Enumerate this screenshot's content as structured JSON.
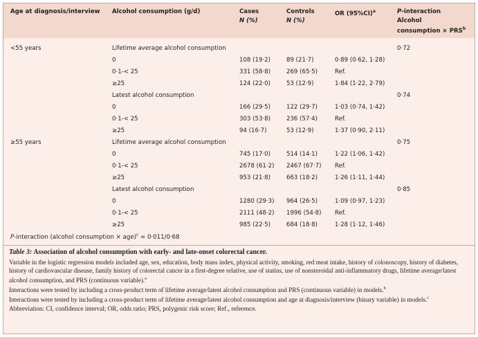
{
  "table": {
    "columns": [
      {
        "lines": [
          {
            "text": "Age at diagnosis/interview"
          }
        ]
      },
      {
        "lines": [
          {
            "text": "Alcohol consumption (g/d)"
          }
        ]
      },
      {
        "lines": [
          {
            "text": "Cases"
          },
          {
            "italic": "N (%)"
          }
        ]
      },
      {
        "lines": [
          {
            "text": "Controls"
          },
          {
            "italic": "N (%)"
          }
        ]
      },
      {
        "lines": [
          {
            "text": "OR (95%CI)",
            "sup": "a"
          }
        ]
      },
      {
        "lines": [
          {
            "italic": "P",
            "text": "-interaction"
          },
          {
            "text": "Alcohol"
          },
          {
            "text": "consumption × PRS",
            "sup": "b"
          }
        ]
      }
    ],
    "rows": [
      {
        "age": "<55 years",
        "alcohol": "Lifetime average alcohol consumption",
        "p": "0·72"
      },
      {
        "alcohol": "0",
        "cases": "108 (19·2)",
        "controls": "89 (21·7)",
        "or": "0·89 (0·62, 1·28)"
      },
      {
        "alcohol": "0·1-< 25",
        "cases": "331 (58·8)",
        "controls": "269 (65·5)",
        "or": "Ref."
      },
      {
        "alcohol": "≥25",
        "cases": "124 (22·0)",
        "controls": "53 (12·9)",
        "or": "1·84 (1·22, 2·79)"
      },
      {
        "alcohol": "Latest alcohol consumption",
        "p": "0·74"
      },
      {
        "alcohol": "0",
        "cases": "166 (29·5)",
        "controls": "122 (29·7)",
        "or": "1·03 (0·74, 1·42)"
      },
      {
        "alcohol": "0·1-< 25",
        "cases": "303 (53·8)",
        "controls": "236 (57·4)",
        "or": "Ref."
      },
      {
        "alcohol": "≥25",
        "cases": "94 (16·7)",
        "controls": "53 (12·9)",
        "or": "1·37 (0·90, 2·11)"
      },
      {
        "age": "≥55 years",
        "alcohol": "Lifetime average alcohol consumption",
        "p": "0·75"
      },
      {
        "alcohol": "0",
        "cases": "745 (17·0)",
        "controls": "514 (14·1)",
        "or": "1·22 (1·06, 1·42)"
      },
      {
        "alcohol": "0·1-< 25",
        "cases": "2678 (61·2)",
        "controls": "2467 (67·7)",
        "or": "Ref."
      },
      {
        "alcohol": "≥25",
        "cases": "953 (21·8)",
        "controls": "663 (18·2)",
        "or": "1·26 (1·11, 1·44)"
      },
      {
        "alcohol": "Latest alcohol consumption",
        "p": "0·85"
      },
      {
        "alcohol": "0",
        "cases": "1280 (29·3)",
        "controls": "964 (26·5)",
        "or": "1·09 (0·97, 1·23)"
      },
      {
        "alcohol": "0·1-< 25",
        "cases": "2111 (48·2)",
        "controls": "1996 (54·8)",
        "or": "Ref."
      },
      {
        "alcohol": "≥25",
        "cases": "985 (22·5)",
        "controls": "684 (18·8)",
        "or": "1·28 (1·12, 1·46)"
      }
    ],
    "footer": {
      "italic": "P",
      "text": "-interaction (alcohol consumption × age)",
      "sup": "c",
      "value": "= 0·011/0·68"
    }
  },
  "caption": {
    "label": "Table 3:",
    "title": "Association of alcohol consumption with early- and late-onset colorectal cancer."
  },
  "notes": [
    {
      "sup": "a",
      "text": "Variable in the logistic regression models included age, sex, education, body mass index, physical activity, smoking, red meat intake, history of colonoscopy, history of diabetes, history of cardiovascular disease, family history of colorectal cancer in a first-degree relative, use of statins, use of nonsteroidal anti-inflammatory drugs, lifetime average/latest alcohol consumption, and PRS (continuous variable)."
    },
    {
      "sup": "b",
      "text": "Interactions were tested by including a cross-product term of lifetime average/latest alcohol consumption and PRS (continuous variable) in models."
    },
    {
      "sup": "c",
      "text": "Interactions were tested by including a cross-product term of lifetime average/latest alcohol consumption and age at diagnosis/interview (binary variable) in models."
    }
  ],
  "abbreviation": "Abbreviation: CI, confidence interval; OR, odds ratio; PRS, polygenic risk score; Ref., reference."
}
